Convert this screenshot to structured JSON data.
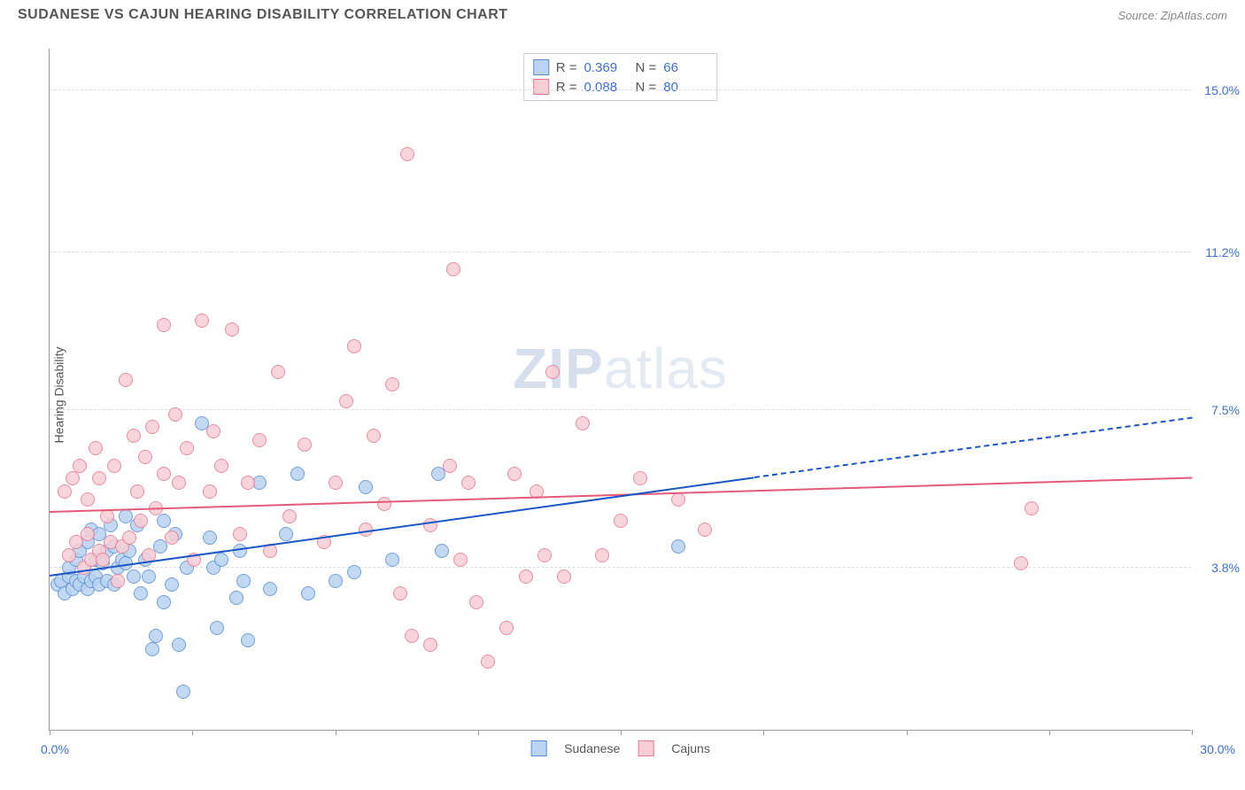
{
  "header": {
    "title": "SUDANESE VS CAJUN HEARING DISABILITY CORRELATION CHART",
    "source": "Source: ZipAtlas.com"
  },
  "watermark": {
    "bold": "ZIP",
    "light": "atlas"
  },
  "chart": {
    "type": "scatter",
    "ylabel": "Hearing Disability",
    "xlim": [
      0.0,
      30.0
    ],
    "ylim": [
      0.0,
      16.0
    ],
    "xticks": [
      0.0,
      3.75,
      7.5,
      11.25,
      15.0,
      18.75,
      22.5,
      26.25,
      30.0
    ],
    "xlabel_min": "0.0%",
    "xlabel_max": "30.0%",
    "ygrid": [
      {
        "v": 3.8,
        "label": "3.8%"
      },
      {
        "v": 7.5,
        "label": "7.5%"
      },
      {
        "v": 11.2,
        "label": "11.2%"
      },
      {
        "v": 15.0,
        "label": "15.0%"
      }
    ],
    "background_color": "#ffffff",
    "grid_color": "#dddddd",
    "marker_radius": 8,
    "marker_stroke": 1.5,
    "series": [
      {
        "name": "Sudanese",
        "fill": "#b9d3f0",
        "stroke": "#5a8fd8",
        "r_value": "0.369",
        "n_value": "66",
        "trend": {
          "x1": 0.0,
          "y1": 3.6,
          "x2": 18.5,
          "y2": 5.9,
          "color": "#1a56c4",
          "dash": false
        },
        "trend_ext": {
          "x1": 18.5,
          "y1": 5.9,
          "x2": 30.0,
          "y2": 7.3,
          "color": "#1a56c4",
          "dash": true
        },
        "points": [
          [
            0.2,
            3.4
          ],
          [
            0.3,
            3.5
          ],
          [
            0.4,
            3.2
          ],
          [
            0.5,
            3.6
          ],
          [
            0.5,
            3.8
          ],
          [
            0.6,
            3.3
          ],
          [
            0.7,
            3.5
          ],
          [
            0.7,
            4.0
          ],
          [
            0.8,
            3.4
          ],
          [
            0.8,
            4.2
          ],
          [
            0.9,
            3.6
          ],
          [
            1.0,
            3.3
          ],
          [
            1.0,
            4.4
          ],
          [
            1.1,
            3.5
          ],
          [
            1.1,
            4.7
          ],
          [
            1.2,
            3.6
          ],
          [
            1.2,
            4.0
          ],
          [
            1.3,
            3.4
          ],
          [
            1.3,
            4.6
          ],
          [
            1.4,
            3.9
          ],
          [
            1.5,
            4.2
          ],
          [
            1.5,
            3.5
          ],
          [
            1.6,
            4.8
          ],
          [
            1.7,
            3.4
          ],
          [
            1.7,
            4.3
          ],
          [
            1.8,
            3.8
          ],
          [
            1.9,
            4.0
          ],
          [
            2.0,
            3.9
          ],
          [
            2.0,
            5.0
          ],
          [
            2.1,
            4.2
          ],
          [
            2.2,
            3.6
          ],
          [
            2.3,
            4.8
          ],
          [
            2.4,
            3.2
          ],
          [
            2.5,
            4.0
          ],
          [
            2.6,
            3.6
          ],
          [
            2.7,
            1.9
          ],
          [
            2.8,
            2.2
          ],
          [
            2.9,
            4.3
          ],
          [
            3.0,
            3.0
          ],
          [
            3.0,
            4.9
          ],
          [
            3.2,
            3.4
          ],
          [
            3.3,
            4.6
          ],
          [
            3.4,
            2.0
          ],
          [
            3.5,
            0.9
          ],
          [
            3.6,
            3.8
          ],
          [
            4.0,
            7.2
          ],
          [
            4.2,
            4.5
          ],
          [
            4.3,
            3.8
          ],
          [
            4.4,
            2.4
          ],
          [
            4.5,
            4.0
          ],
          [
            4.9,
            3.1
          ],
          [
            5.0,
            4.2
          ],
          [
            5.1,
            3.5
          ],
          [
            5.2,
            2.1
          ],
          [
            5.5,
            5.8
          ],
          [
            5.8,
            3.3
          ],
          [
            6.2,
            4.6
          ],
          [
            6.5,
            6.0
          ],
          [
            6.8,
            3.2
          ],
          [
            7.5,
            3.5
          ],
          [
            8.0,
            3.7
          ],
          [
            8.3,
            5.7
          ],
          [
            9.0,
            4.0
          ],
          [
            10.2,
            6.0
          ],
          [
            10.3,
            4.2
          ],
          [
            16.5,
            4.3
          ]
        ]
      },
      {
        "name": "Cajuns",
        "fill": "#f7cdd6",
        "stroke": "#e77a93",
        "r_value": "0.088",
        "n_value": "80",
        "trend": {
          "x1": 0.0,
          "y1": 5.1,
          "x2": 30.0,
          "y2": 5.9,
          "color": "#e35a7a",
          "dash": false
        },
        "points": [
          [
            0.4,
            5.6
          ],
          [
            0.5,
            4.1
          ],
          [
            0.6,
            5.9
          ],
          [
            0.7,
            4.4
          ],
          [
            0.8,
            6.2
          ],
          [
            0.9,
            3.8
          ],
          [
            1.0,
            4.6
          ],
          [
            1.0,
            5.4
          ],
          [
            1.1,
            4.0
          ],
          [
            1.2,
            6.6
          ],
          [
            1.3,
            4.2
          ],
          [
            1.3,
            5.9
          ],
          [
            1.4,
            4.0
          ],
          [
            1.5,
            5.0
          ],
          [
            1.6,
            4.4
          ],
          [
            1.7,
            6.2
          ],
          [
            1.8,
            3.5
          ],
          [
            1.9,
            4.3
          ],
          [
            2.0,
            8.2
          ],
          [
            2.1,
            4.5
          ],
          [
            2.2,
            6.9
          ],
          [
            2.3,
            5.6
          ],
          [
            2.4,
            4.9
          ],
          [
            2.5,
            6.4
          ],
          [
            2.6,
            4.1
          ],
          [
            2.7,
            7.1
          ],
          [
            2.8,
            5.2
          ],
          [
            3.0,
            6.0
          ],
          [
            3.0,
            9.5
          ],
          [
            3.2,
            4.5
          ],
          [
            3.3,
            7.4
          ],
          [
            3.4,
            5.8
          ],
          [
            3.6,
            6.6
          ],
          [
            3.8,
            4.0
          ],
          [
            4.0,
            9.6
          ],
          [
            4.2,
            5.6
          ],
          [
            4.3,
            7.0
          ],
          [
            4.5,
            6.2
          ],
          [
            4.8,
            9.4
          ],
          [
            5.0,
            4.6
          ],
          [
            5.2,
            5.8
          ],
          [
            5.5,
            6.8
          ],
          [
            5.8,
            4.2
          ],
          [
            6.0,
            8.4
          ],
          [
            6.3,
            5.0
          ],
          [
            6.7,
            6.7
          ],
          [
            7.2,
            4.4
          ],
          [
            7.5,
            5.8
          ],
          [
            7.8,
            7.7
          ],
          [
            8.0,
            9.0
          ],
          [
            8.3,
            4.7
          ],
          [
            8.5,
            6.9
          ],
          [
            8.8,
            5.3
          ],
          [
            9.0,
            8.1
          ],
          [
            9.2,
            3.2
          ],
          [
            9.4,
            13.5
          ],
          [
            9.5,
            2.2
          ],
          [
            10.0,
            2.0
          ],
          [
            10.5,
            6.2
          ],
          [
            10.6,
            10.8
          ],
          [
            10.8,
            4.0
          ],
          [
            11.0,
            5.8
          ],
          [
            11.5,
            1.6
          ],
          [
            12.0,
            2.4
          ],
          [
            12.2,
            6.0
          ],
          [
            12.5,
            3.6
          ],
          [
            12.8,
            5.6
          ],
          [
            13.0,
            4.1
          ],
          [
            13.2,
            8.4
          ],
          [
            13.5,
            3.6
          ],
          [
            14.0,
            7.2
          ],
          [
            14.5,
            4.1
          ],
          [
            15.0,
            4.9
          ],
          [
            15.5,
            5.9
          ],
          [
            16.5,
            5.4
          ],
          [
            17.2,
            4.7
          ],
          [
            25.5,
            3.9
          ],
          [
            25.8,
            5.2
          ],
          [
            10.0,
            4.8
          ],
          [
            11.2,
            3.0
          ]
        ]
      }
    ]
  },
  "legend": {
    "series1_label": "Sudanese",
    "series2_label": "Cajuns"
  }
}
